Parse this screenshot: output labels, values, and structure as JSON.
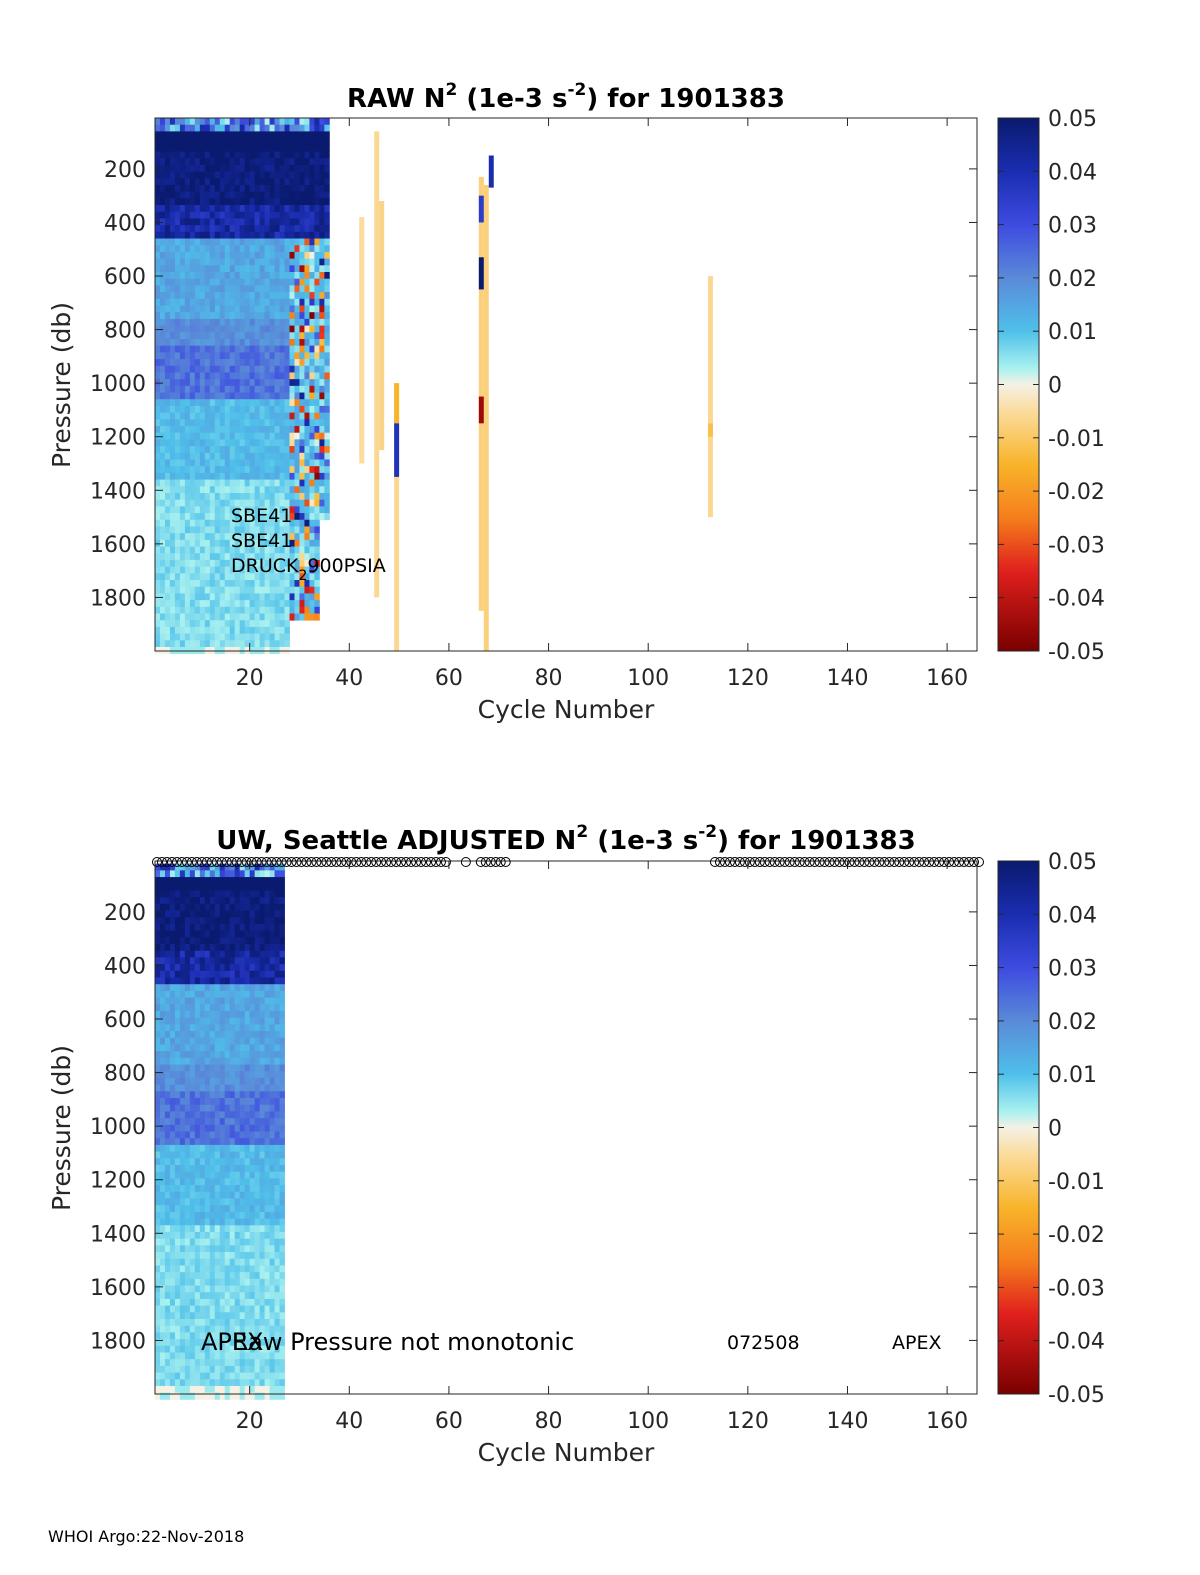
{
  "footer": "WHOI Argo:22-Nov-2018",
  "chart_data": [
    {
      "type": "heatmap",
      "title": "RAW N² (1e-3 s⁻²) for 1901383",
      "title_parts": {
        "pre": "RAW N",
        "exp1": "2",
        "mid": " (1e-3 s",
        "exp2": "-2",
        "post": ") for 1901383"
      },
      "xlabel": "Cycle Number",
      "ylabel": "Pressure (db)",
      "xlim": [
        1,
        166
      ],
      "ylim": [
        2000,
        10
      ],
      "y_reversed": true,
      "xticks": [
        20,
        40,
        60,
        80,
        100,
        120,
        140,
        160
      ],
      "yticks": [
        200,
        400,
        600,
        800,
        1000,
        1200,
        1400,
        1600,
        1800
      ],
      "colorbar": {
        "ticks": [
          "0.05",
          "0.04",
          "0.03",
          "0.02",
          "0.01",
          "0",
          "-0.01",
          "-0.02",
          "-0.03",
          "-0.04",
          "-0.05"
        ],
        "range": [
          -0.05,
          0.05
        ]
      },
      "annotations": {
        "sensor_1": "SBE41",
        "sensor_2": "SBE41",
        "sensor_3_pre": "DRUCK",
        "sensor_3_sub": "2",
        "sensor_3_post": "900PSIA"
      },
      "profile_columns": [
        {
          "cycle_start": 1,
          "cycle_end": 28,
          "pmin": 10,
          "pmax": 2000,
          "pattern": "ocean"
        },
        {
          "cycle_start": 28,
          "cycle_end": 36,
          "pmin": 10,
          "pmax": 1880,
          "pattern": "noisy"
        },
        {
          "cycle_start": 42,
          "cycle_end": 43,
          "pmin": 380,
          "pmax": 1300,
          "value": -0.005
        },
        {
          "cycle_start": 45,
          "cycle_end": 46,
          "pmin": 60,
          "pmax": 1800,
          "value": -0.006
        },
        {
          "cycle_start": 46,
          "cycle_end": 47,
          "pmin": 320,
          "pmax": 1250,
          "value": -0.007
        },
        {
          "cycle_start": 49,
          "cycle_end": 50,
          "pmin": 1000,
          "pmax": 2000,
          "value": -0.006
        },
        {
          "cycle_start": 66,
          "cycle_end": 67,
          "pmin": 230,
          "pmax": 1850,
          "value": -0.008
        },
        {
          "cycle_start": 67,
          "cycle_end": 68,
          "pmin": 260,
          "pmax": 2000,
          "value": -0.008
        },
        {
          "cycle_start": 68,
          "cycle_end": 69,
          "pmin": 150,
          "pmax": 270,
          "value": 0.04
        },
        {
          "cycle_start": 112,
          "cycle_end": 113,
          "pmin": 600,
          "pmax": 1500,
          "value": -0.006
        }
      ],
      "highlights": [
        {
          "cycle_start": 49,
          "cycle_end": 50,
          "pmin": 1000,
          "pmax": 1150,
          "value": -0.015
        },
        {
          "cycle_start": 49,
          "cycle_end": 50,
          "pmin": 1150,
          "pmax": 1350,
          "value": 0.038
        },
        {
          "cycle_start": 66,
          "cycle_end": 67,
          "pmin": 300,
          "pmax": 400,
          "value": 0.035
        },
        {
          "cycle_start": 66,
          "cycle_end": 67,
          "pmin": 530,
          "pmax": 650,
          "value": 0.05
        },
        {
          "cycle_start": 66,
          "cycle_end": 67,
          "pmin": 1050,
          "pmax": 1150,
          "value": -0.045
        },
        {
          "cycle_start": 112,
          "cycle_end": 113,
          "pmin": 1150,
          "pmax": 1200,
          "value": -0.012
        }
      ]
    },
    {
      "type": "heatmap",
      "title": "UW, Seattle ADJUSTED N² (1e-3 s⁻²) for 1901383",
      "title_parts": {
        "pre": "UW, Seattle  ADJUSTED N",
        "exp1": "2",
        "mid": " (1e-3 s",
        "exp2": "-2",
        "post": ") for 1901383"
      },
      "xlabel": "Cycle Number",
      "ylabel": "Pressure (db)",
      "xlim": [
        1,
        166
      ],
      "ylim": [
        2000,
        10
      ],
      "y_reversed": true,
      "xticks": [
        20,
        40,
        60,
        80,
        100,
        120,
        140,
        160
      ],
      "yticks": [
        200,
        400,
        600,
        800,
        1000,
        1200,
        1400,
        1600,
        1800
      ],
      "colorbar": {
        "ticks": [
          "0.05",
          "0.04",
          "0.03",
          "0.02",
          "0.01",
          "0",
          "-0.01",
          "-0.02",
          "-0.03",
          "-0.04",
          "-0.05"
        ],
        "range": [
          -0.05,
          0.05
        ]
      },
      "annotations": {
        "apex_left": "APEX",
        "message": "Raw Pressure not monotonic",
        "serial": "072508",
        "apex_right": "APEX"
      },
      "profile_columns": [
        {
          "cycle_start": 1,
          "cycle_end": 27,
          "pmin": 20,
          "pmax": 2000,
          "pattern": "ocean"
        }
      ],
      "flag_markers": [
        {
          "from": 1,
          "to": 59
        },
        {
          "from": 63,
          "to": 63
        },
        {
          "from": 66,
          "to": 71
        },
        {
          "from": 113,
          "to": 166
        }
      ]
    }
  ]
}
